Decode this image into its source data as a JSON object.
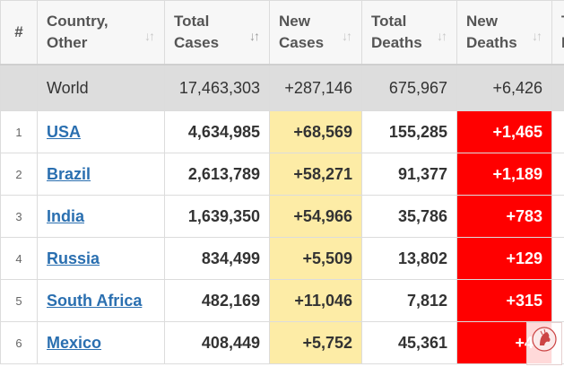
{
  "headers": {
    "num": "#",
    "country": [
      "Country,",
      "Other"
    ],
    "total_cases": [
      "Total",
      "Cases"
    ],
    "new_cases": [
      "New",
      "Cases"
    ],
    "total_deaths": [
      "Total",
      "Deaths"
    ],
    "new_deaths": [
      "New",
      "Deaths"
    ],
    "extra": [
      "T",
      "F"
    ]
  },
  "sort_glyph": "↓↑",
  "world": {
    "label": "World",
    "total_cases": "17,463,303",
    "new_cases": "+287,146",
    "total_deaths": "675,967",
    "new_deaths": "+6,426"
  },
  "rows": [
    {
      "num": "1",
      "country": "USA",
      "total_cases": "4,634,985",
      "new_cases": "+68,569",
      "total_deaths": "155,285",
      "new_deaths": "+1,465"
    },
    {
      "num": "2",
      "country": "Brazil",
      "total_cases": "2,613,789",
      "new_cases": "+58,271",
      "total_deaths": "91,377",
      "new_deaths": "+1,189"
    },
    {
      "num": "3",
      "country": "India",
      "total_cases": "1,639,350",
      "new_cases": "+54,966",
      "total_deaths": "35,786",
      "new_deaths": "+783"
    },
    {
      "num": "4",
      "country": "Russia",
      "total_cases": "834,499",
      "new_cases": "+5,509",
      "total_deaths": "13,802",
      "new_deaths": "+129"
    },
    {
      "num": "5",
      "country": "South Africa",
      "total_cases": "482,169",
      "new_cases": "+11,046",
      "total_deaths": "7,812",
      "new_deaths": "+315"
    },
    {
      "num": "6",
      "country": "Mexico",
      "total_cases": "408,449",
      "new_cases": "+5,752",
      "total_deaths": "45,361",
      "new_deaths": "+48"
    }
  ],
  "colors": {
    "new_cases_bg": "#fdeca6",
    "new_deaths_bg": "#ff0000",
    "world_bg": "#dddddd",
    "link": "#2a6fb0"
  }
}
